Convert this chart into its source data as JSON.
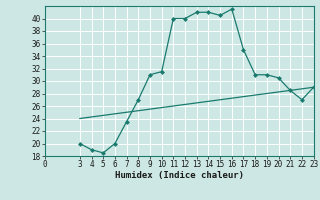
{
  "xlabel": "Humidex (Indice chaleur)",
  "ylabel": "",
  "bg_color": "#cde8e4",
  "grid_color": "#ffffff",
  "line_color": "#1a7a6e",
  "xlim": [
    0,
    23
  ],
  "ylim": [
    18,
    42
  ],
  "yticks": [
    18,
    20,
    22,
    24,
    26,
    28,
    30,
    32,
    34,
    36,
    38,
    40
  ],
  "xticks": [
    0,
    3,
    4,
    5,
    6,
    7,
    8,
    9,
    10,
    11,
    12,
    13,
    14,
    15,
    16,
    17,
    18,
    19,
    20,
    21,
    22,
    23
  ],
  "xtick_labels": [
    "0",
    "3",
    "4",
    "5",
    "6",
    "7",
    "8",
    "9",
    "10",
    "11",
    "12",
    "13",
    "14",
    "15",
    "16",
    "17",
    "18",
    "19",
    "20",
    "21",
    "22",
    "23"
  ],
  "line1_x": [
    3,
    4,
    5,
    6,
    7,
    8,
    9,
    10,
    11,
    12,
    13,
    14,
    15,
    16,
    17,
    18,
    19,
    20,
    21,
    22,
    23
  ],
  "line1_y": [
    20,
    19,
    18.5,
    20,
    23.5,
    27,
    31,
    31.5,
    40,
    40,
    41,
    41,
    40.5,
    41.5,
    35,
    31,
    31,
    30.5,
    28.5,
    27,
    29
  ],
  "line2_x": [
    3,
    23
  ],
  "line2_y": [
    24,
    29
  ],
  "tick_fontsize": 5.5,
  "xlabel_fontsize": 6.5
}
